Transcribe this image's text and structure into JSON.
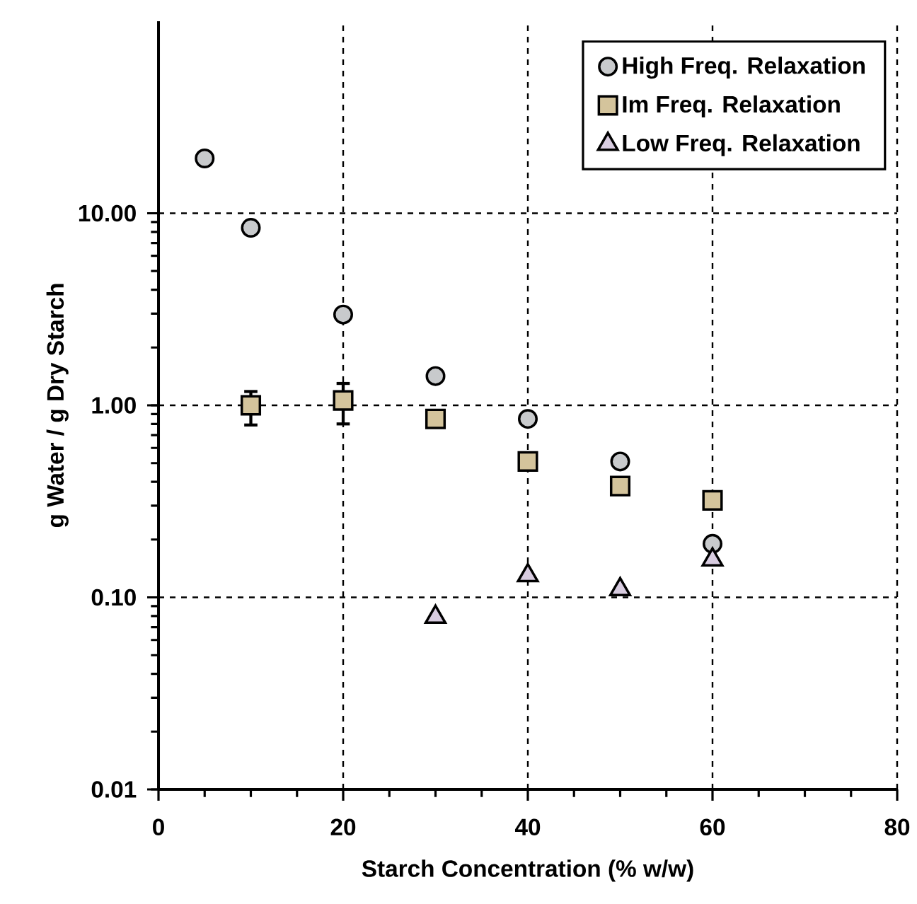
{
  "chart_data": {
    "type": "scatter",
    "xlabel": "Starch Concentration (% w/w)",
    "ylabel": "g Water / g Dry Starch",
    "log": "y",
    "grid": true,
    "legend": "top right",
    "xlim": [
      0,
      80
    ],
    "xticks": [
      0,
      20,
      40,
      60,
      80
    ],
    "ylim": [
      0.01,
      100
    ],
    "yticks": [
      {
        "value": 0.01,
        "label": "0.01"
      },
      {
        "value": 0.1,
        "label": "0.10"
      },
      {
        "value": 1,
        "label": "1.00"
      },
      {
        "value": 10,
        "label": "10.00"
      }
    ],
    "series": [
      {
        "name": "High Freq. Relaxation",
        "color": "#c8cacc",
        "marker": "circle",
        "x": [
          5,
          10,
          20,
          30,
          40,
          50,
          60
        ],
        "values": [
          19.3,
          8.4,
          2.97,
          1.42,
          0.85,
          0.51,
          0.19
        ]
      },
      {
        "name": "Im Freq. Relaxation",
        "color": "#d4c49c",
        "marker": "square",
        "x": [
          10,
          20,
          30,
          40,
          50,
          60
        ],
        "values": [
          1.0,
          1.06,
          0.85,
          0.51,
          0.38,
          0.32
        ],
        "errors": [
          [
            0.79,
            1.18
          ],
          [
            0.8,
            1.3
          ],
          null,
          null,
          null,
          null
        ]
      },
      {
        "name": "Low Freq. Relaxation",
        "color": "#d8cce0",
        "marker": "triangle",
        "x": [
          30,
          40,
          50,
          60
        ],
        "values": [
          0.079,
          0.13,
          0.11,
          0.157
        ]
      }
    ]
  }
}
